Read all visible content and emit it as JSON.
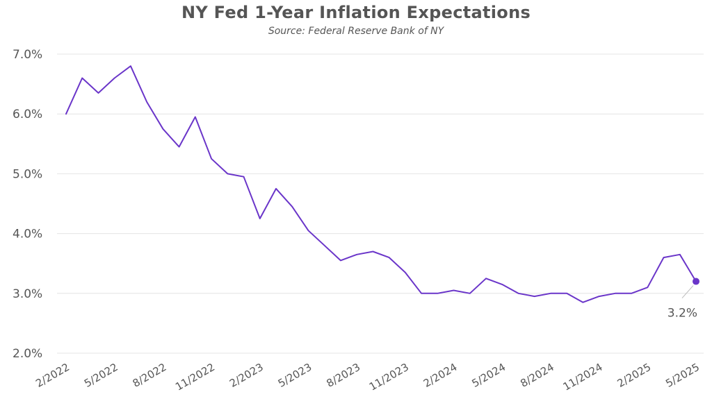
{
  "chart_data": {
    "type": "line",
    "title": "NY Fed 1-Year Inflation Expectations",
    "subtitle": "Source: Federal Reserve Bank of NY",
    "xlabel": "",
    "ylabel": "",
    "ylim": [
      2.0,
      7.0
    ],
    "yticks": [
      "2.0%",
      "3.0%",
      "4.0%",
      "5.0%",
      "6.0%",
      "7.0%"
    ],
    "ytick_values": [
      2.0,
      3.0,
      4.0,
      5.0,
      6.0,
      7.0
    ],
    "xticks": [
      "2/2022",
      "5/2022",
      "8/2022",
      "11/2022",
      "2/2023",
      "5/2023",
      "8/2023",
      "11/2023",
      "2/2024",
      "5/2024",
      "8/2024",
      "11/2024",
      "2/2025",
      "5/2025"
    ],
    "grid": true,
    "line_color": "#6a35c9",
    "categories": [
      "2/2022",
      "3/2022",
      "4/2022",
      "5/2022",
      "6/2022",
      "7/2022",
      "8/2022",
      "9/2022",
      "10/2022",
      "11/2022",
      "12/2022",
      "1/2023",
      "2/2023",
      "3/2023",
      "4/2023",
      "5/2023",
      "6/2023",
      "7/2023",
      "8/2023",
      "9/2023",
      "10/2023",
      "11/2023",
      "12/2023",
      "1/2024",
      "2/2024",
      "3/2024",
      "4/2024",
      "5/2024",
      "6/2024",
      "7/2024",
      "8/2024",
      "9/2024",
      "10/2024",
      "11/2024",
      "12/2024",
      "1/2025",
      "2/2025",
      "3/2025",
      "4/2025",
      "5/2025"
    ],
    "values": [
      6.0,
      6.6,
      6.35,
      6.6,
      6.8,
      6.2,
      5.75,
      5.45,
      5.95,
      5.25,
      5.0,
      4.95,
      4.25,
      4.75,
      4.45,
      4.05,
      3.8,
      3.55,
      3.65,
      3.7,
      3.6,
      3.35,
      3.0,
      3.0,
      3.05,
      3.0,
      3.25,
      3.15,
      3.0,
      2.95,
      3.0,
      3.0,
      2.85,
      2.95,
      3.0,
      3.0,
      3.1,
      3.6,
      3.65,
      3.2
    ],
    "annotation": {
      "label": "3.2%",
      "value": 3.2
    }
  }
}
